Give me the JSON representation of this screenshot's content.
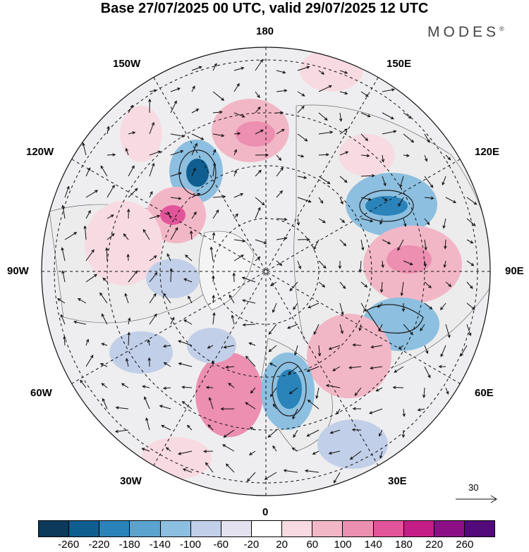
{
  "title": "Base 27/07/2025 00 UTC, valid 29/07/2025 12 UTC",
  "brand": "MODES",
  "brand_mark": "®",
  "longitude_labels": {
    "n": "180",
    "s": "0",
    "w": "90W",
    "e": "90E",
    "w150": "150W",
    "e150": "150E",
    "w120": "120W",
    "e120": "120E",
    "w60": "60W",
    "e60": "60E",
    "w30": "30W",
    "e30": "30E"
  },
  "wind_scale": {
    "value": "30"
  },
  "colorbar": {
    "colors": [
      "#0b3a5a",
      "#0f5e8f",
      "#2a83b9",
      "#5aa3cf",
      "#8cbfe0",
      "#c2cfe8",
      "#e4e1f0",
      "#ffffff",
      "#f8dbe2",
      "#f2b7c6",
      "#ec8fb0",
      "#e3559a",
      "#c51d87",
      "#8d0f87",
      "#530a7a"
    ],
    "ticks": [
      "-260",
      "-220",
      "-180",
      "-140",
      "-100",
      "-60",
      "-20",
      "20",
      "60",
      "100",
      "140",
      "180",
      "220",
      "260"
    ]
  }
}
